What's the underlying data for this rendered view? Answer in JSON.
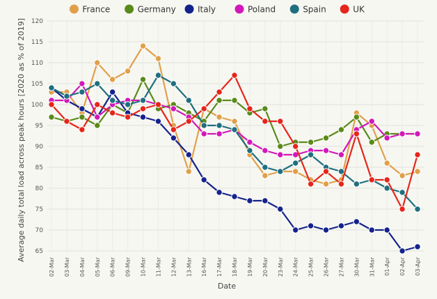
{
  "chart_data": {
    "type": "line",
    "xlabel": "Date",
    "ylabel": "Average daily total load across peak hours [2020 as % of 2019]",
    "ylim": [
      65,
      120
    ],
    "yticks": [
      65,
      70,
      75,
      80,
      85,
      90,
      95,
      100,
      105,
      110,
      115,
      120
    ],
    "grid": true,
    "legend": "top",
    "categories": [
      "02-Mar",
      "03-Mar",
      "04-Mar",
      "05-Mar",
      "06-Mar",
      "09-Mar",
      "10-Mar",
      "11-Mar",
      "12-Mar",
      "13-Mar",
      "16-Mar",
      "17-Mar",
      "18-Mar",
      "19-Mar",
      "20-Mar",
      "23-Mar",
      "24-Mar",
      "25-Mar",
      "26-Mar",
      "27-Mar",
      "30-Mar",
      "31-Mar",
      "01-Apr",
      "02-Apr",
      "03-Apr"
    ],
    "series": [
      {
        "name": "France",
        "color": "#e0a04a",
        "values": [
          103,
          103,
          98,
          110,
          106,
          108,
          114,
          111,
          95,
          84,
          99,
          97,
          96,
          88,
          83,
          84,
          84,
          82,
          81,
          82,
          98,
          95,
          86,
          83,
          84
        ]
      },
      {
        "name": "Germany",
        "color": "#5a8a1a",
        "values": [
          97,
          96,
          97,
          95,
          100,
          98,
          106,
          99,
          100,
          98,
          96,
          101,
          101,
          98,
          99,
          90,
          91,
          91,
          92,
          94,
          97,
          91,
          93,
          93,
          93
        ]
      },
      {
        "name": "Italy",
        "color": "#14238c",
        "values": [
          104,
          101,
          99,
          97,
          103,
          98,
          97,
          96,
          92,
          88,
          82,
          79,
          78,
          77,
          77,
          75,
          70,
          71,
          70,
          71,
          72,
          70,
          70,
          65,
          66
        ]
      },
      {
        "name": "Poland",
        "color": "#d118b8",
        "values": [
          101,
          101,
          105,
          97,
          100,
          101,
          101,
          100,
          99,
          97,
          93,
          93,
          94,
          91,
          89,
          88,
          88,
          89,
          89,
          88,
          94,
          96,
          92,
          93,
          93
        ]
      },
      {
        "name": "Spain",
        "color": "#1f6f7f",
        "values": [
          104,
          102,
          103,
          105,
          101,
          100,
          101,
          107,
          105,
          101,
          95,
          95,
          94,
          89,
          85,
          84,
          86,
          88,
          85,
          84,
          81,
          82,
          80,
          79,
          75
        ]
      },
      {
        "name": "UK",
        "color": "#e5261b",
        "values": [
          100,
          96,
          94,
          100,
          98,
          97,
          99,
          100,
          94,
          96,
          99,
          103,
          107,
          99,
          96,
          96,
          90,
          81,
          84,
          81,
          93,
          82,
          82,
          75,
          88
        ]
      }
    ]
  }
}
